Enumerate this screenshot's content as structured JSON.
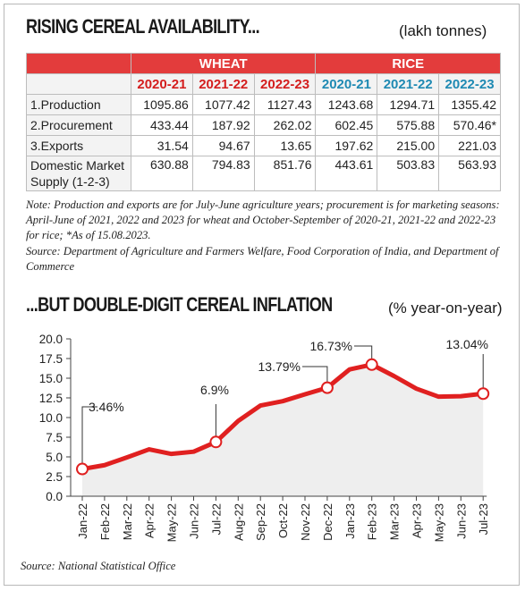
{
  "top": {
    "headline": "RISING CEREAL AVAILABILITY...",
    "unit": "(lakh tonnes)",
    "groups": [
      "WHEAT",
      "RICE"
    ],
    "years": [
      "2020-21",
      "2021-22",
      "2022-23",
      "2020-21",
      "2021-22",
      "2022-23"
    ],
    "rows": [
      {
        "label": "1.Production",
        "values": [
          "1095.86",
          "1077.42",
          "1127.43",
          "1243.68",
          "1294.71",
          "1355.42"
        ]
      },
      {
        "label": "2.Procurement",
        "values": [
          "433.44",
          "187.92",
          "262.02",
          "602.45",
          "575.88",
          "570.46*"
        ]
      },
      {
        "label": "3.Exports",
        "values": [
          "31.54",
          "94.67",
          "13.65",
          "197.62",
          "215.00",
          "221.03"
        ]
      },
      {
        "label": "Domestic Market Supply (1-2-3)",
        "values": [
          "630.88",
          "794.83",
          "851.76",
          "443.61",
          "503.83",
          "563.93"
        ]
      }
    ],
    "note": "Note: Production and exports are for July-June agriculture years; procurement is for marketing seasons: April-June of 2021, 2022 and 2023 for wheat and October-September of 2020-21, 2021-22 and 2022-23 for rice; *As of 15.08.2023.",
    "source": "Source: Department of Agriculture and Farmers Welfare, Food Corporation of India, and Department of Commerce"
  },
  "bottom": {
    "headline": "...BUT DOUBLE-DIGIT CEREAL INFLATION",
    "unit": "(% year-on-year)",
    "source": "Source: National Statistical Office"
  },
  "colors": {
    "accent": "#e33c3c",
    "rice": "#1f8ab3",
    "line": "#e02020",
    "area": "#eeeeee"
  },
  "chart_data": {
    "type": "line",
    "categories": [
      "Jan-22",
      "Feb-22",
      "Mar-22",
      "Apr-22",
      "May-22",
      "Jun-22",
      "Jul-22",
      "Aug-22",
      "Sep-22",
      "Oct-22",
      "Nov-22",
      "Dec-22",
      "Jan-23",
      "Feb-23",
      "Mar-23",
      "Apr-23",
      "May-23",
      "Jun-23",
      "Jul-23"
    ],
    "values": [
      3.46,
      3.95,
      4.93,
      5.96,
      5.38,
      5.66,
      6.9,
      9.57,
      11.53,
      12.08,
      12.96,
      13.79,
      16.12,
      16.73,
      15.27,
      13.67,
      12.65,
      12.71,
      13.04
    ],
    "ylim": [
      0,
      20
    ],
    "yticks": [
      "0.0",
      "2.5",
      "5.0",
      "7.5",
      "10.0",
      "12.5",
      "15.0",
      "17.5",
      "20.0"
    ],
    "annotations": [
      {
        "index": 0,
        "text": "3.46%"
      },
      {
        "index": 6,
        "text": "6.9%"
      },
      {
        "index": 11,
        "text": "13.79%"
      },
      {
        "index": 13,
        "text": "16.73%"
      },
      {
        "index": 18,
        "text": "13.04%"
      }
    ],
    "grid": false
  }
}
